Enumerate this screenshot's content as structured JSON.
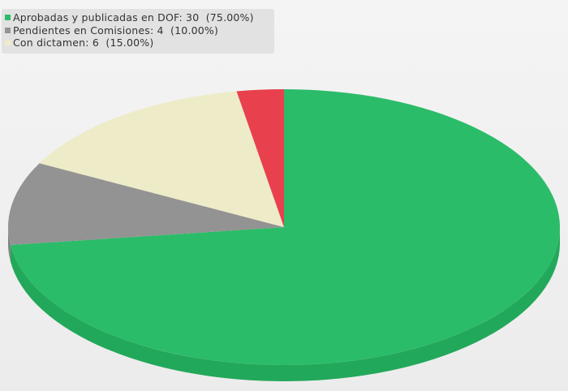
{
  "chart_data": {
    "type": "pie",
    "title": "",
    "legend_position": "top-left",
    "slices": [
      {
        "label": "Aprobadas y publicadas en DOF",
        "value": 30,
        "percent": "75.00%",
        "legend_text": "Aprobadas y publicadas en DOF: 30  (75.00%)",
        "color": "#2bbc69",
        "side_color": "#22a85a"
      },
      {
        "label": "Pendientes en Comisiones",
        "value": 4,
        "percent": "10.00%",
        "legend_text": "Pendientes en Comisiones: 4  (10.00%)",
        "color": "#939393",
        "side_color": "#7f7f7f"
      },
      {
        "label": "Con dictamen",
        "value": 6,
        "percent": "15.00%",
        "legend_text": "Con dictamen: 6  (15.00%)",
        "color": "#eeebc8",
        "side_color": "#d6d3b0"
      }
    ],
    "extra_wedge_color": "#e8404d",
    "extra_wedge_share": 0.0275
  }
}
